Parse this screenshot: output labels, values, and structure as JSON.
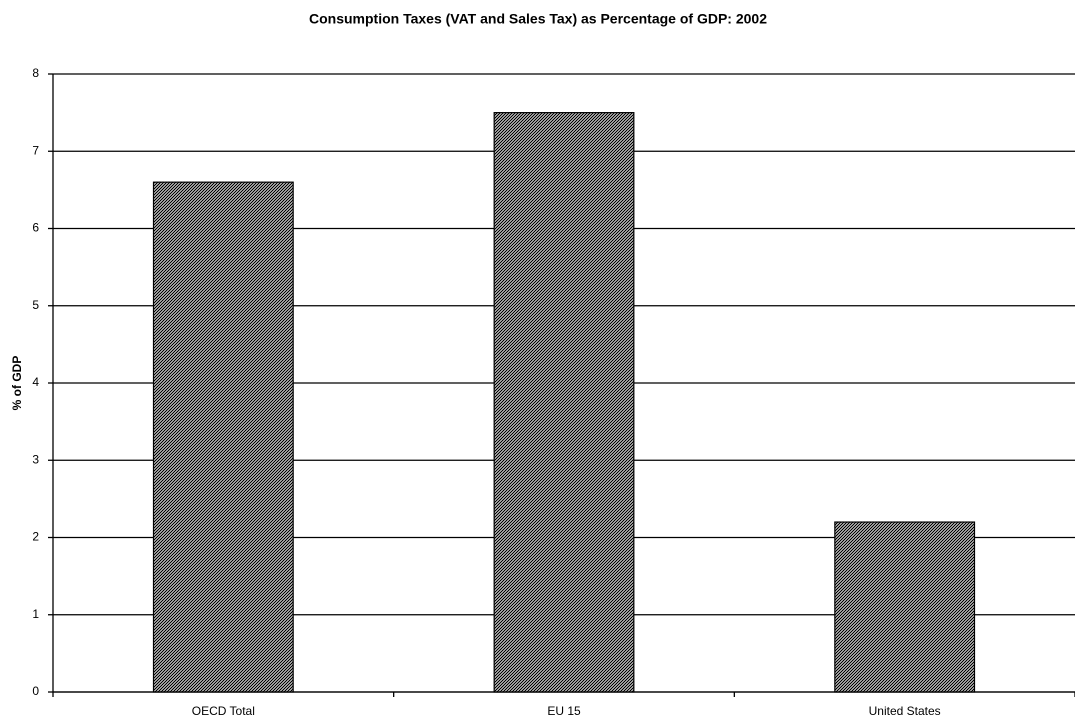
{
  "chart_data": {
    "type": "bar",
    "title": "Consumption Taxes (VAT and Sales Tax) as Percentage of GDP: 2002",
    "y_label": "% of GDP",
    "categories": [
      "OECD Total",
      "EU 15",
      "United States"
    ],
    "values": [
      6.6,
      7.5,
      2.2
    ],
    "color": "#9c9c9c",
    "ylim": [
      0,
      8
    ],
    "yticks": [
      0,
      1,
      2,
      3,
      4,
      5,
      6,
      7,
      8
    ],
    "grid": true
  }
}
